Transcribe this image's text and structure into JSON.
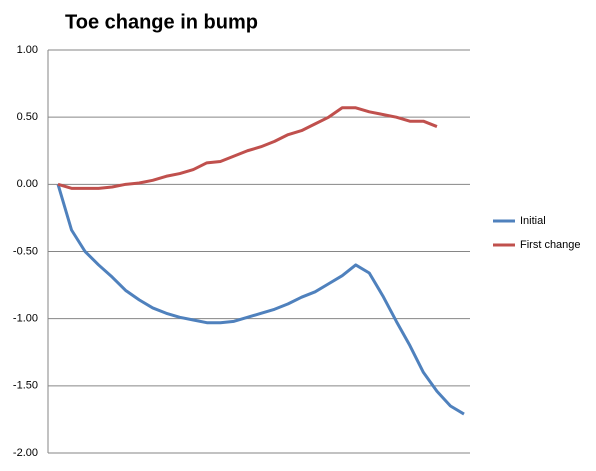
{
  "chart_data": {
    "type": "line",
    "title": "Toe change in bump",
    "categories": [
      null,
      null,
      null,
      null,
      null,
      null,
      null,
      null,
      null,
      null,
      null,
      null,
      null,
      null,
      null,
      null,
      null,
      null,
      null,
      null,
      null,
      null,
      null,
      null,
      null,
      null,
      null,
      null,
      null,
      null,
      null
    ],
    "series": [
      {
        "name": "Initial",
        "color": "#4f81bd",
        "values": [
          0.0,
          -0.34,
          -0.5,
          -0.6,
          -0.69,
          -0.79,
          -0.86,
          -0.92,
          -0.96,
          -0.99,
          -1.01,
          -1.03,
          -1.03,
          -1.02,
          -0.99,
          -0.96,
          -0.93,
          -0.89,
          -0.84,
          -0.8,
          -0.74,
          -0.68,
          -0.6,
          -0.66,
          -0.83,
          -1.02,
          -1.2,
          -1.4,
          -1.54,
          -1.65,
          -1.71
        ]
      },
      {
        "name": "First change",
        "color": "#c0504d",
        "values": [
          0.0,
          -0.03,
          -0.03,
          -0.03,
          -0.02,
          0.0,
          0.01,
          0.03,
          0.06,
          0.08,
          0.11,
          0.16,
          0.17,
          0.21,
          0.25,
          0.28,
          0.32,
          0.37,
          0.4,
          0.45,
          0.5,
          0.57,
          0.57,
          0.54,
          0.52,
          0.5,
          0.47,
          0.47,
          0.43,
          null,
          null
        ]
      }
    ],
    "ylim": [
      -2,
      1
    ],
    "yticks": [
      {
        "value": -2,
        "label": "-2.00"
      },
      {
        "value": -1.5,
        "label": "-1.50"
      },
      {
        "value": -1,
        "label": "-1.00"
      },
      {
        "value": -0.5,
        "label": "-0.50"
      },
      {
        "value": 0,
        "label": "0.00"
      },
      {
        "value": 0.5,
        "label": "0.50"
      },
      {
        "value": 1,
        "label": "1.00"
      }
    ],
    "grid": true,
    "legend": "right"
  }
}
